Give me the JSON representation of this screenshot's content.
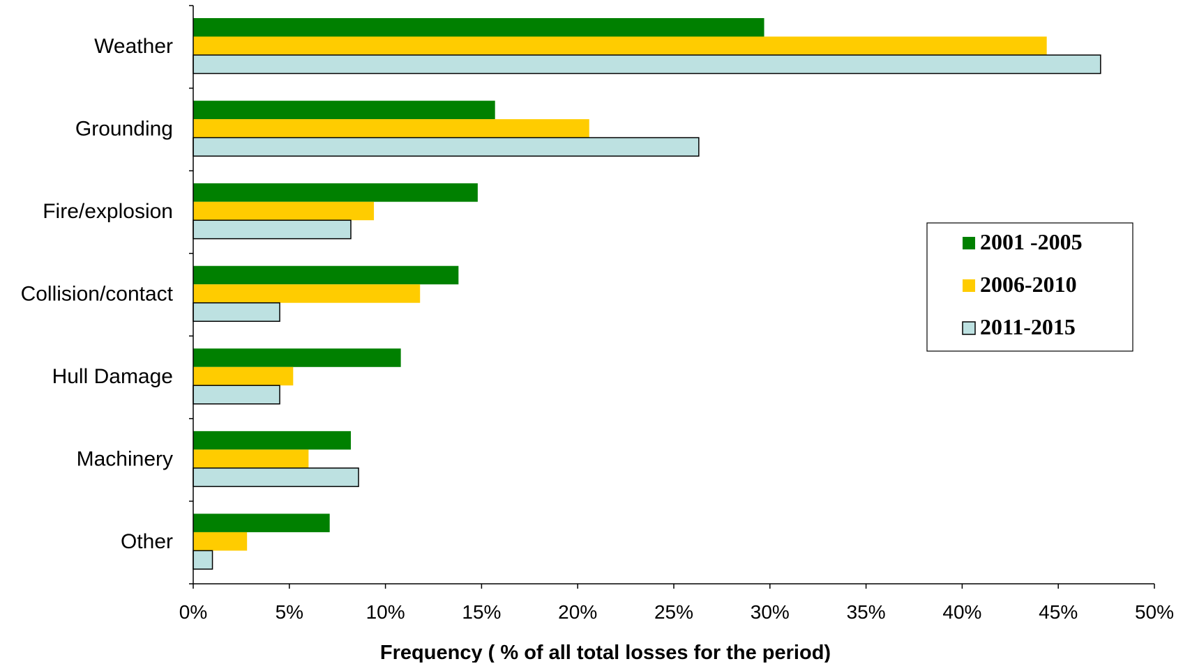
{
  "chart_data": {
    "type": "bar",
    "orientation": "horizontal",
    "title": "",
    "xlabel": "Frequency ( % of all total losses for the period)",
    "ylabel": "",
    "xlim": [
      0,
      50
    ],
    "x_ticks": [
      "0%",
      "5%",
      "10%",
      "15%",
      "20%",
      "25%",
      "30%",
      "35%",
      "40%",
      "45%",
      "50%"
    ],
    "grid": false,
    "legend_position": "right",
    "categories": [
      "Weather",
      "Grounding",
      "Fire/explosion",
      "Collision/contact",
      "Hull Damage",
      "Machinery",
      "Other"
    ],
    "series": [
      {
        "name": "2001 -2005",
        "color": "#008000",
        "outlined": false,
        "values": [
          29.7,
          15.7,
          14.8,
          13.8,
          10.8,
          8.2,
          7.1
        ]
      },
      {
        "name": "2006-2010",
        "color": "#ffcc00",
        "outlined": false,
        "values": [
          44.4,
          20.6,
          9.4,
          11.8,
          5.2,
          6.0,
          2.8
        ]
      },
      {
        "name": "2011-2015",
        "color": "#bde1e1",
        "outlined": true,
        "values": [
          47.2,
          26.3,
          8.2,
          4.5,
          4.5,
          8.6,
          1.0
        ]
      }
    ]
  }
}
